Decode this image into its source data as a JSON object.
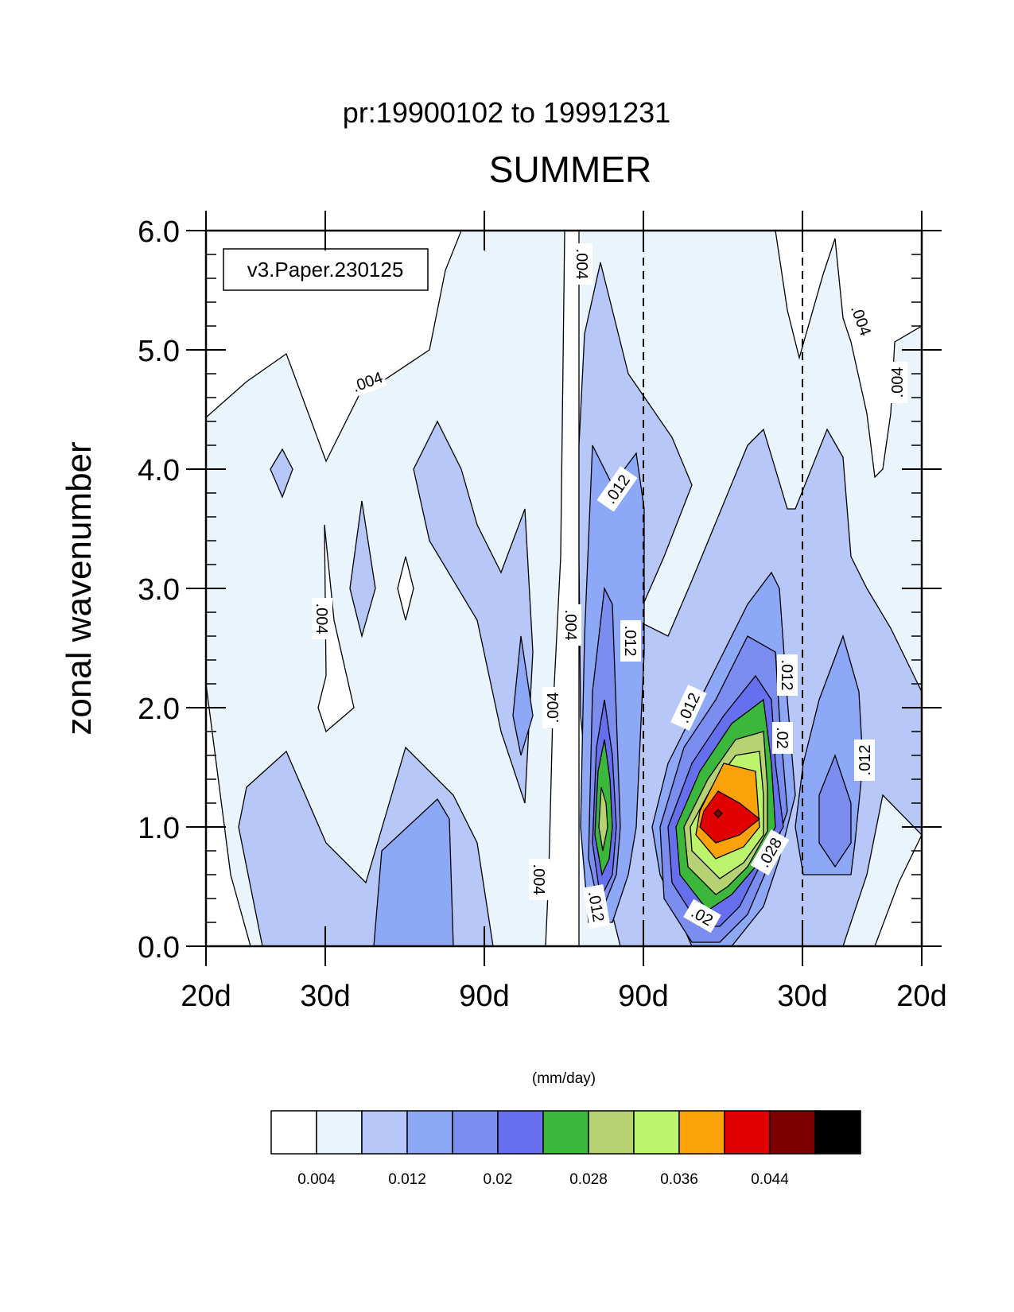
{
  "chart_data": {
    "type": "contour",
    "subtitle": "pr:19900102 to 19991231",
    "title": "SUMMER",
    "ylabel": "zonal wavenumber",
    "xlabel": "",
    "annotation_box": "v3.Paper.230125",
    "units_label": "(mm/day)",
    "yticks": [
      "0.0",
      "1.0",
      "2.0",
      "3.0",
      "4.0",
      "5.0",
      "6.0"
    ],
    "ylim": [
      0,
      6
    ],
    "xticks": [
      "20d",
      "30d",
      "90d",
      "90d",
      "30d",
      "20d"
    ],
    "grid": false,
    "colorbar": {
      "levels": [
        "0.004",
        "0.012",
        "0.02",
        "0.028",
        "0.036",
        "0.044"
      ],
      "colors": [
        "#ffffff",
        "#eaf4fd",
        "#b7c7f7",
        "#8ca8f6",
        "#7b8ef0",
        "#6670ef",
        "#3bb83b",
        "#b6d272",
        "#bcf46c",
        "#fba20b",
        "#e00000",
        "#7d0000",
        "#000000"
      ]
    },
    "contour_labels": [
      ".004",
      ".004",
      ".004",
      ".004",
      ".004",
      ".004",
      ".004",
      ".004",
      ".012",
      ".012",
      ".012",
      ".012",
      ".012",
      ".012",
      ".02",
      ".02",
      ".028"
    ],
    "peak": {
      "wavenumber": 1.0,
      "value_range": "0.044"
    }
  }
}
